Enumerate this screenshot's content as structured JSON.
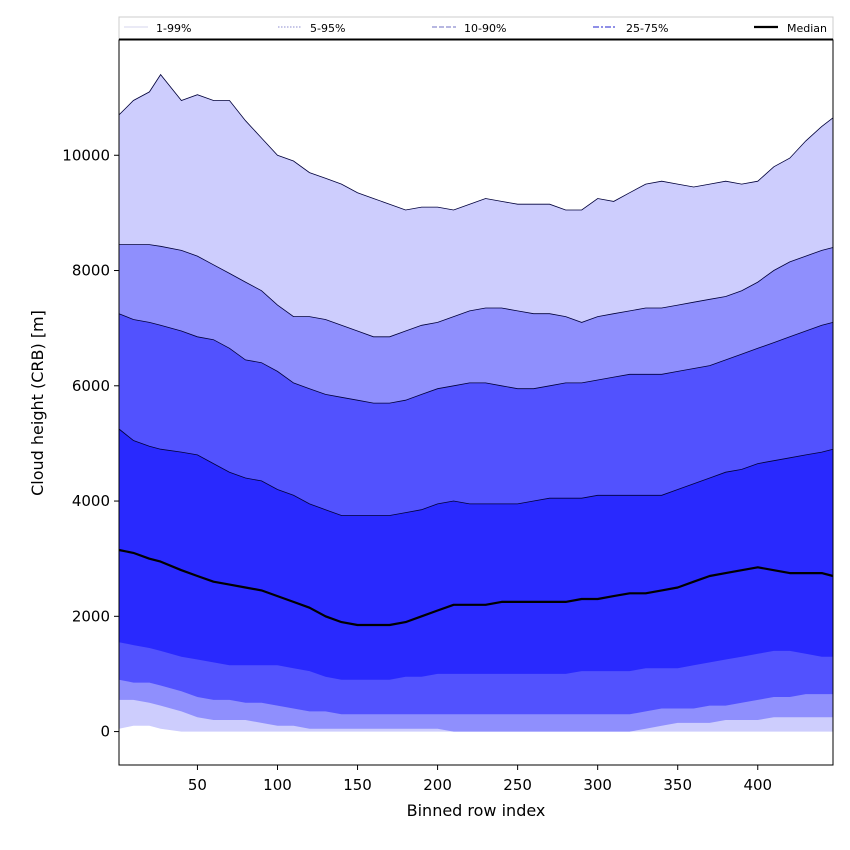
{
  "chart_data": {
    "type": "area",
    "title": "",
    "xlabel": "Binned row index",
    "ylabel": "Cloud height (CRB) [m]",
    "xlim": [
      1,
      447
    ],
    "ylim": [
      -580,
      12000
    ],
    "xticks": [
      50,
      100,
      150,
      200,
      250,
      300,
      350,
      400
    ],
    "yticks": [
      0,
      2000,
      4000,
      6000,
      8000,
      10000
    ],
    "legend": {
      "placement": "top, above plot",
      "entries": [
        "1-99%",
        "5-95%",
        "10-90%",
        "25-75%",
        "Median"
      ]
    },
    "colors": {
      "band_1_99": "#cdcdfd",
      "band_5_95": "#8f8ffd",
      "band_10_90": "#5252fe",
      "band_25_75": "#2929fe",
      "median_line": "#000000",
      "legend_line_5_95": "#8c8ccf",
      "legend_line_10_90": "#8c8ccf",
      "legend_line_25_75": "#6a6adf"
    },
    "x": [
      1,
      10,
      20,
      27,
      40,
      50,
      60,
      70,
      80,
      90,
      100,
      110,
      120,
      130,
      140,
      150,
      160,
      170,
      180,
      190,
      200,
      210,
      220,
      230,
      240,
      250,
      260,
      270,
      280,
      290,
      300,
      310,
      320,
      330,
      340,
      350,
      360,
      370,
      380,
      390,
      400,
      410,
      420,
      430,
      440,
      447
    ],
    "series": [
      {
        "name": "p99",
        "values": [
          10700,
          10950,
          11100,
          11400,
          10950,
          11050,
          10950,
          10950,
          10600,
          10300,
          10000,
          9900,
          9700,
          9600,
          9500,
          9350,
          9250,
          9150,
          9050,
          9100,
          9100,
          9050,
          9150,
          9250,
          9200,
          9150,
          9150,
          9150,
          9050,
          9050,
          9250,
          9200,
          9350,
          9500,
          9550,
          9500,
          9450,
          9500,
          9550,
          9500,
          9550,
          9800,
          9950,
          10250,
          10500,
          10650
        ]
      },
      {
        "name": "p95",
        "values": [
          8450,
          8450,
          8450,
          8420,
          8350,
          8250,
          8100,
          7950,
          7800,
          7650,
          7400,
          7200,
          7200,
          7150,
          7050,
          6950,
          6850,
          6850,
          6950,
          7050,
          7100,
          7200,
          7300,
          7350,
          7350,
          7300,
          7250,
          7250,
          7200,
          7100,
          7200,
          7250,
          7300,
          7350,
          7350,
          7400,
          7450,
          7500,
          7550,
          7650,
          7800,
          8000,
          8150,
          8250,
          8350,
          8400
        ]
      },
      {
        "name": "p90",
        "values": [
          7250,
          7150,
          7100,
          7050,
          6950,
          6850,
          6800,
          6650,
          6450,
          6400,
          6250,
          6050,
          5950,
          5850,
          5800,
          5750,
          5700,
          5700,
          5750,
          5850,
          5950,
          6000,
          6050,
          6050,
          6000,
          5950,
          5950,
          6000,
          6050,
          6050,
          6100,
          6150,
          6200,
          6200,
          6200,
          6250,
          6300,
          6350,
          6450,
          6550,
          6650,
          6750,
          6850,
          6950,
          7050,
          7100
        ]
      },
      {
        "name": "p75",
        "values": [
          5250,
          5050,
          4950,
          4900,
          4850,
          4800,
          4650,
          4500,
          4400,
          4350,
          4200,
          4100,
          3950,
          3850,
          3750,
          3750,
          3750,
          3750,
          3800,
          3850,
          3950,
          4000,
          3950,
          3950,
          3950,
          3950,
          4000,
          4050,
          4050,
          4050,
          4100,
          4100,
          4100,
          4100,
          4100,
          4200,
          4300,
          4400,
          4500,
          4550,
          4650,
          4700,
          4750,
          4800,
          4850,
          4900
        ]
      },
      {
        "name": "Median",
        "values": [
          3150,
          3100,
          3000,
          2950,
          2800,
          2700,
          2600,
          2550,
          2500,
          2450,
          2350,
          2250,
          2150,
          2000,
          1900,
          1850,
          1850,
          1850,
          1900,
          2000,
          2100,
          2200,
          2200,
          2200,
          2250,
          2250,
          2250,
          2250,
          2250,
          2300,
          2300,
          2350,
          2400,
          2400,
          2450,
          2500,
          2600,
          2700,
          2750,
          2800,
          2850,
          2800,
          2750,
          2750,
          2750,
          2700
        ]
      },
      {
        "name": "p25",
        "values": [
          1550,
          1500,
          1450,
          1400,
          1300,
          1250,
          1200,
          1150,
          1150,
          1150,
          1150,
          1100,
          1050,
          950,
          900,
          900,
          900,
          900,
          950,
          950,
          1000,
          1000,
          1000,
          1000,
          1000,
          1000,
          1000,
          1000,
          1000,
          1050,
          1050,
          1050,
          1050,
          1100,
          1100,
          1100,
          1150,
          1200,
          1250,
          1300,
          1350,
          1400,
          1400,
          1350,
          1300,
          1300
        ]
      },
      {
        "name": "p10",
        "values": [
          900,
          850,
          850,
          800,
          700,
          600,
          550,
          550,
          500,
          500,
          450,
          400,
          350,
          350,
          300,
          300,
          300,
          300,
          300,
          300,
          300,
          300,
          300,
          300,
          300,
          300,
          300,
          300,
          300,
          300,
          300,
          300,
          300,
          350,
          400,
          400,
          400,
          450,
          450,
          500,
          550,
          600,
          600,
          650,
          650,
          650
        ]
      },
      {
        "name": "p5",
        "values": [
          550,
          550,
          500,
          450,
          350,
          250,
          200,
          200,
          200,
          150,
          100,
          100,
          50,
          50,
          50,
          50,
          50,
          50,
          50,
          50,
          50,
          0,
          0,
          0,
          0,
          0,
          0,
          0,
          0,
          0,
          0,
          0,
          0,
          50,
          100,
          150,
          150,
          150,
          200,
          200,
          200,
          250,
          250,
          250,
          250,
          250
        ]
      },
      {
        "name": "p1",
        "values": [
          50,
          100,
          100,
          50,
          0,
          0,
          0,
          0,
          0,
          0,
          0,
          0,
          0,
          0,
          0,
          0,
          0,
          0,
          0,
          0,
          0,
          0,
          0,
          0,
          0,
          0,
          0,
          0,
          0,
          0,
          0,
          0,
          0,
          0,
          0,
          0,
          0,
          0,
          0,
          0,
          0,
          0,
          0,
          0,
          0,
          0
        ]
      }
    ]
  }
}
